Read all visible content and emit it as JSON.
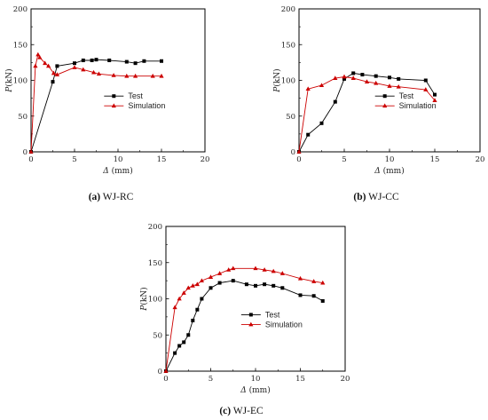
{
  "colors": {
    "test": "#000000",
    "simulation": "#cc0000",
    "axis": "#000000"
  },
  "charts": [
    {
      "id": "rc",
      "caption_id": "(a)",
      "caption_name": "WJ-RC",
      "xlabel_symbol": "Δ",
      "xlabel_unit": " (mm)",
      "ylabel_symbol": "P",
      "ylabel_unit": "(kN)",
      "legend": {
        "test": "Test",
        "simulation": "Simulation"
      }
    },
    {
      "id": "cc",
      "caption_id": "(b)",
      "caption_name": "WJ-CC",
      "xlabel_symbol": "Δ",
      "xlabel_unit": " (mm)",
      "ylabel_symbol": "P",
      "ylabel_unit": "(kN)",
      "legend": {
        "test": "Test",
        "simulation": "Simulation"
      }
    },
    {
      "id": "ec",
      "caption_id": "(c)",
      "caption_name": "WJ-EC",
      "xlabel_symbol": "Δ",
      "xlabel_unit": " (mm)",
      "ylabel_symbol": "P",
      "ylabel_unit": "(kN)",
      "legend": {
        "test": "Test",
        "simulation": "Simulation"
      }
    }
  ],
  "chart_data": [
    {
      "type": "line",
      "xlim": [
        0,
        20
      ],
      "ylim": [
        0,
        200
      ],
      "xticks": [
        0,
        5,
        10,
        15,
        20
      ],
      "yticks": [
        0,
        50,
        100,
        150,
        200
      ],
      "legend_position": "middle-right",
      "series": [
        {
          "name": "Test",
          "marker": "square",
          "x": [
            0,
            2.5,
            3,
            5,
            6,
            7,
            7.5,
            9,
            11,
            12,
            13,
            15
          ],
          "y": [
            0,
            98,
            120,
            124,
            128,
            128,
            129,
            128,
            126,
            124,
            127,
            127
          ]
        },
        {
          "name": "Simulation",
          "marker": "triangle",
          "x": [
            0,
            0.5,
            0.8,
            1,
            1.6,
            2,
            2.6,
            3,
            5,
            6,
            7.2,
            7.8,
            9.5,
            11,
            12,
            14,
            15
          ],
          "y": [
            0,
            120,
            136,
            132,
            124,
            120,
            110,
            108,
            118,
            115,
            111,
            109,
            107,
            106,
            106,
            106,
            106
          ]
        }
      ]
    },
    {
      "type": "line",
      "xlim": [
        0,
        20
      ],
      "ylim": [
        0,
        200
      ],
      "xticks": [
        0,
        5,
        10,
        15,
        20
      ],
      "yticks": [
        0,
        50,
        100,
        150,
        200
      ],
      "legend_position": "middle-right",
      "series": [
        {
          "name": "Test",
          "marker": "square",
          "x": [
            0,
            1,
            2.5,
            4,
            5,
            6,
            7,
            8.5,
            10,
            11,
            14,
            15
          ],
          "y": [
            0,
            24,
            40,
            70,
            102,
            110,
            108,
            106,
            104,
            102,
            100,
            80
          ]
        },
        {
          "name": "Simulation",
          "marker": "triangle",
          "x": [
            0,
            1,
            2.5,
            4,
            5,
            6,
            7.5,
            8.5,
            10,
            11,
            14,
            15
          ],
          "y": [
            0,
            88,
            93,
            103,
            105,
            103,
            98,
            96,
            92,
            91,
            87,
            72
          ]
        }
      ]
    },
    {
      "type": "line",
      "xlim": [
        0,
        20
      ],
      "ylim": [
        0,
        200
      ],
      "xticks": [
        0,
        5,
        10,
        15,
        20
      ],
      "yticks": [
        0,
        50,
        100,
        150,
        200
      ],
      "legend_position": "middle-right",
      "series": [
        {
          "name": "Test",
          "marker": "square",
          "x": [
            0,
            1,
            1.5,
            2,
            2.5,
            3,
            3.5,
            4,
            5,
            6,
            7.5,
            9,
            10,
            11,
            12,
            13,
            15,
            16.5,
            17.5
          ],
          "y": [
            0,
            25,
            35,
            40,
            50,
            70,
            85,
            100,
            115,
            122,
            125,
            120,
            118,
            120,
            118,
            115,
            105,
            104,
            97
          ]
        },
        {
          "name": "Simulation",
          "marker": "triangle",
          "x": [
            0,
            1,
            1.5,
            2,
            2.5,
            3,
            3.5,
            4,
            5,
            6,
            7,
            7.5,
            10,
            11,
            12,
            13,
            15,
            16.5,
            17.5
          ],
          "y": [
            0,
            88,
            100,
            108,
            115,
            118,
            120,
            125,
            130,
            135,
            140,
            142,
            142,
            140,
            138,
            135,
            128,
            124,
            122
          ]
        }
      ]
    }
  ]
}
